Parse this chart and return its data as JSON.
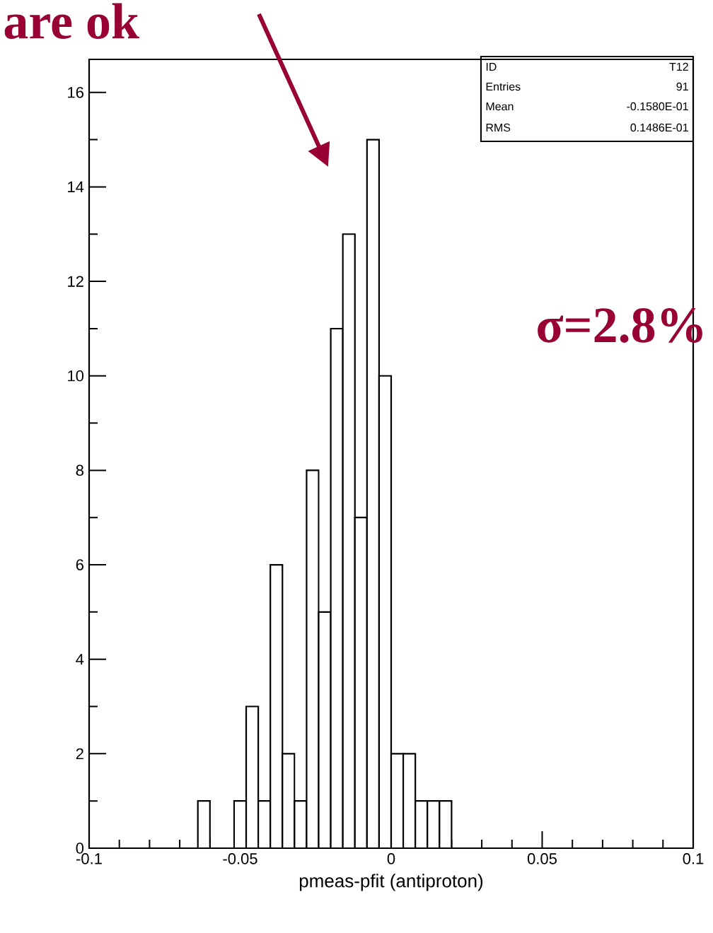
{
  "chart_data": {
    "type": "histogram",
    "xlabel": "pmeas-pfit (antiproton)",
    "color": "#000000",
    "bins": [
      -0.064,
      -0.06,
      -0.056,
      -0.052,
      -0.048,
      -0.044,
      -0.04,
      -0.036,
      -0.032,
      -0.028,
      -0.024,
      -0.02,
      -0.016,
      -0.012,
      -0.008,
      -0.004,
      0,
      0.004,
      0.008,
      0.012,
      0.016,
      0.02
    ],
    "values": [
      1,
      0,
      0,
      1,
      3,
      1,
      6,
      2,
      1,
      8,
      5,
      11,
      13,
      7,
      15,
      10,
      2,
      2,
      1,
      1,
      1
    ],
    "xlim": [
      -0.1,
      0.1
    ],
    "ylim": [
      0,
      16.7
    ],
    "xticks": [
      {
        "value": -0.1,
        "label": "-0.1"
      },
      {
        "value": -0.05,
        "label": "-0.05"
      },
      0,
      0.05,
      0.1
    ],
    "yticks": [
      0,
      2,
      4,
      6,
      8,
      10,
      12,
      14,
      16
    ],
    "annotations": [
      "are ok",
      "σ=2.8%",
      "ID",
      "T12",
      "Entries",
      "91",
      "Mean",
      "-0.1580E-01",
      "RMS",
      "0.1486E-01"
    ],
    "grid": false
  }
}
